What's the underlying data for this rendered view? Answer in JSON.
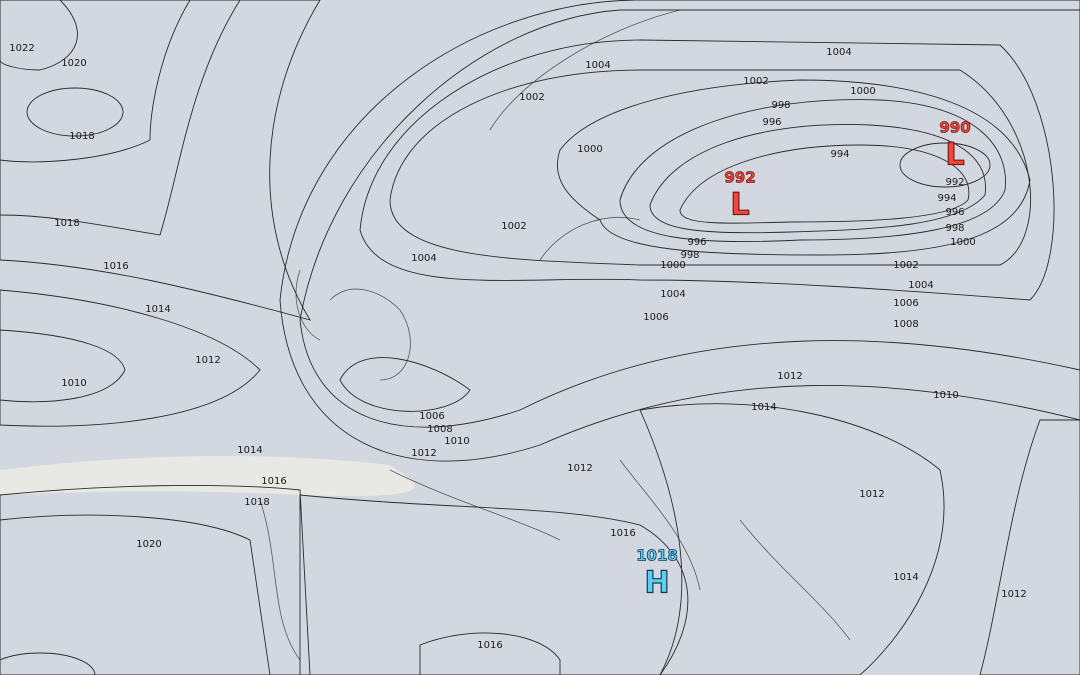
{
  "isobar_labels": [
    1022,
    1020,
    1018,
    1018,
    1016,
    1014,
    1012,
    1010,
    1014,
    1016,
    1018,
    1020,
    1004,
    1002,
    1002,
    1004,
    1000,
    1000,
    998,
    996,
    994,
    992,
    994,
    996,
    998,
    1000,
    996,
    998,
    1000,
    1002,
    1004,
    1002,
    1004,
    1006,
    1008,
    1004,
    1006,
    1006,
    1008,
    1010,
    1012,
    1012,
    1014,
    1010,
    1012,
    1012,
    1016,
    1014,
    1012,
    1016
  ],
  "pressure_centers": [
    {
      "value": 992,
      "symbol": "L"
    },
    {
      "value": 990,
      "symbol": "L"
    },
    {
      "value": 1018,
      "symbol": "H"
    }
  ]
}
